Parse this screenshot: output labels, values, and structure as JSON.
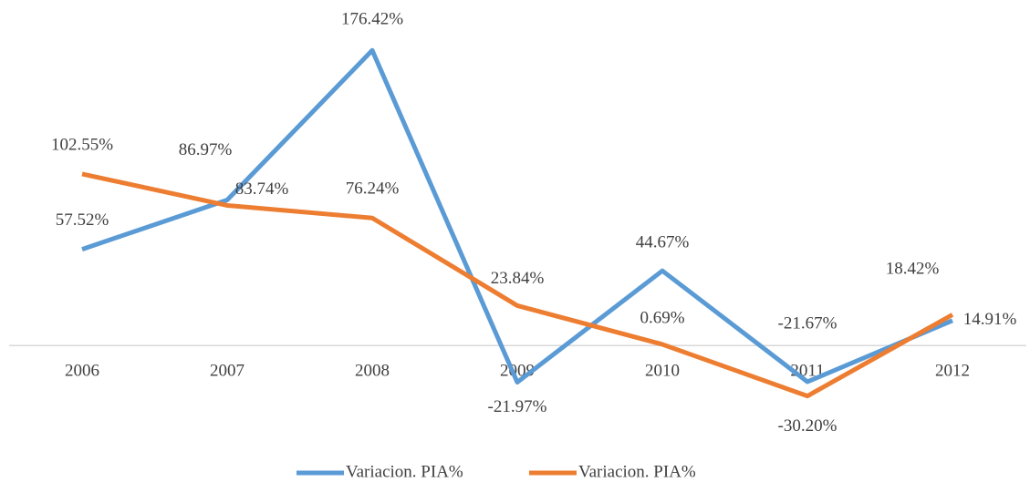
{
  "chart_data": {
    "type": "line",
    "categories": [
      "2006",
      "2007",
      "2008",
      "2009",
      "2010",
      "2011",
      "2012"
    ],
    "series": [
      {
        "name": "Variacion. PIA%",
        "color": "#5b9bd5",
        "values": [
          57.52,
          86.97,
          176.42,
          -21.97,
          44.67,
          -21.67,
          14.91
        ],
        "value_labels": [
          "57.52%",
          "86.97%",
          "176.42%",
          "-21.97%",
          "44.67%",
          "-21.67%",
          "14.91%"
        ]
      },
      {
        "name": "Variacion. PIA%",
        "color": "#ed7d31",
        "values": [
          102.55,
          83.74,
          76.24,
          23.84,
          0.69,
          -30.2,
          18.42
        ],
        "value_labels": [
          "102.55%",
          "83.74%",
          "76.24%",
          "23.84%",
          "0.69%",
          "-30.20%",
          "18.42%"
        ]
      }
    ],
    "ylim": [
      -50,
      200
    ],
    "legend": "bottom"
  }
}
